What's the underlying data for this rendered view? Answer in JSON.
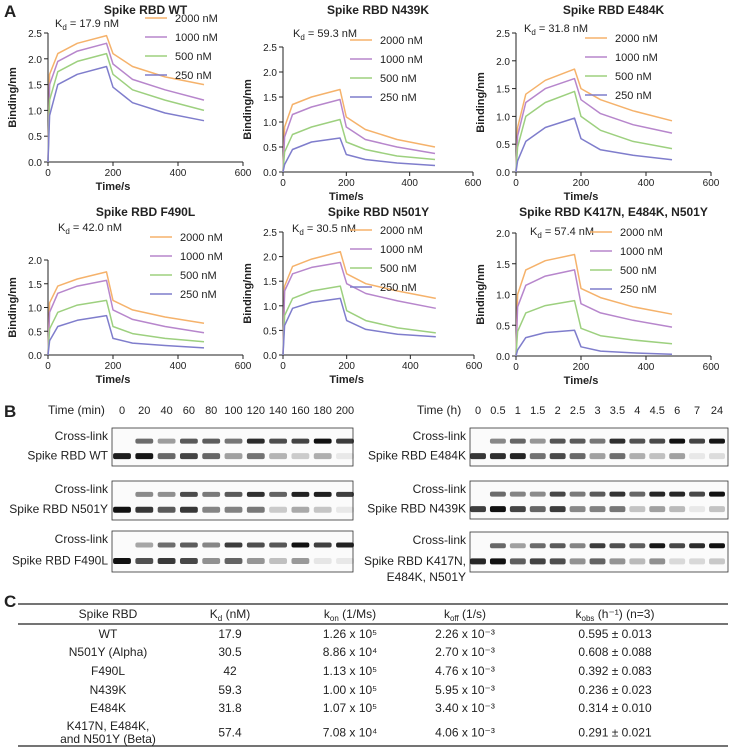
{
  "panels": [
    "A",
    "B",
    "C"
  ],
  "chart_data": [
    {
      "type": "line",
      "title": "Spike RBD WT",
      "kd": {
        "symbol": "K",
        "sub": "d",
        "text": " = 17.9 nM"
      },
      "x_label": "Time/s",
      "y_label": "Binding/nm",
      "x": [
        0,
        5,
        30,
        90,
        180,
        200,
        260,
        360,
        480
      ],
      "xlim": [
        0,
        600
      ],
      "xticks": [
        0,
        200,
        400,
        600
      ],
      "ylim": [
        0,
        2.5
      ],
      "yticks": [
        {
          "value": 0,
          "label": "0.0"
        },
        0.5,
        {
          "value": 1,
          "label": "1.0"
        },
        1.5,
        {
          "value": 2,
          "label": "2.0"
        },
        2.5
      ],
      "series": [
        {
          "name": "2000 nM",
          "color": "#f5b26b",
          "values": [
            0,
            1.7,
            2.1,
            2.3,
            2.45,
            2.1,
            1.85,
            1.65,
            1.5
          ]
        },
        {
          "name": "1000 nM",
          "color": "#b786cc",
          "values": [
            0,
            1.5,
            1.95,
            2.15,
            2.3,
            1.9,
            1.6,
            1.4,
            1.2
          ]
        },
        {
          "name": "500 nM",
          "color": "#9dd07f",
          "values": [
            0,
            1.2,
            1.75,
            1.95,
            2.1,
            1.7,
            1.4,
            1.2,
            1.0
          ]
        },
        {
          "name": "250 nM",
          "color": "#7f7dcc",
          "values": [
            0,
            0.9,
            1.5,
            1.7,
            1.85,
            1.45,
            1.15,
            0.95,
            0.8
          ]
        }
      ]
    },
    {
      "type": "line",
      "title": "Spike RBD N439K",
      "kd": {
        "symbol": "K",
        "sub": "d",
        "text": " = 59.3 nM"
      },
      "x_label": "Time/s",
      "y_label": "Binding/nm",
      "x": [
        0,
        5,
        30,
        90,
        180,
        200,
        260,
        360,
        480
      ],
      "xlim": [
        0,
        600
      ],
      "xticks": [
        0,
        200,
        400,
        600
      ],
      "ylim": [
        0,
        2.5
      ],
      "yticks": [
        {
          "value": 0,
          "label": "0.0"
        },
        0.5,
        {
          "value": 1,
          "label": "1.0"
        },
        1.5,
        {
          "value": 2,
          "label": "2.0"
        },
        2.5
      ],
      "series": [
        {
          "name": "2000 nM",
          "color": "#f5b26b",
          "values": [
            0,
            0.9,
            1.35,
            1.5,
            1.65,
            1.1,
            0.85,
            0.65,
            0.5
          ]
        },
        {
          "name": "1000 nM",
          "color": "#b786cc",
          "values": [
            0,
            0.7,
            1.15,
            1.3,
            1.45,
            0.9,
            0.65,
            0.5,
            0.37
          ]
        },
        {
          "name": "500 nM",
          "color": "#9dd07f",
          "values": [
            0,
            0.4,
            0.75,
            0.9,
            1.05,
            0.6,
            0.45,
            0.32,
            0.25
          ]
        },
        {
          "name": "250 nM",
          "color": "#7f7dcc",
          "values": [
            0,
            0.15,
            0.45,
            0.6,
            0.68,
            0.35,
            0.25,
            0.18,
            0.13
          ]
        }
      ]
    },
    {
      "type": "line",
      "title": "Spike RBD E484K",
      "kd": {
        "symbol": "K",
        "sub": "d",
        "text": " = 31.8 nM"
      },
      "x_label": "Time/s",
      "y_label": "Binding/nm",
      "x": [
        0,
        5,
        30,
        90,
        180,
        200,
        260,
        360,
        480
      ],
      "xlim": [
        0,
        600
      ],
      "xticks": [
        0,
        200,
        400,
        600
      ],
      "ylim": [
        0,
        2.5
      ],
      "yticks": [
        {
          "value": 0,
          "label": "0.0"
        },
        0.5,
        {
          "value": 1,
          "label": "1.0"
        },
        1.5,
        {
          "value": 2,
          "label": "2.0"
        },
        2.5
      ],
      "series": [
        {
          "name": "2000 nM",
          "color": "#f5b26b",
          "values": [
            0,
            0.8,
            1.4,
            1.65,
            1.85,
            1.5,
            1.3,
            1.1,
            0.92
          ]
        },
        {
          "name": "1000 nM",
          "color": "#b786cc",
          "values": [
            0,
            0.65,
            1.25,
            1.5,
            1.68,
            1.3,
            1.05,
            0.85,
            0.7
          ]
        },
        {
          "name": "500 nM",
          "color": "#9dd07f",
          "values": [
            0,
            0.45,
            1.0,
            1.25,
            1.45,
            1.0,
            0.75,
            0.55,
            0.42
          ]
        },
        {
          "name": "250 nM",
          "color": "#7f7dcc",
          "values": [
            0,
            0.2,
            0.55,
            0.8,
            0.97,
            0.6,
            0.4,
            0.3,
            0.22
          ]
        }
      ]
    },
    {
      "type": "line",
      "title": "Spike RBD F490L",
      "kd": {
        "symbol": "K",
        "sub": "d",
        "text": " = 42.0 nM"
      },
      "x_label": "Time/s",
      "y_label": "Binding/nm",
      "x": [
        0,
        5,
        30,
        90,
        180,
        200,
        260,
        360,
        480
      ],
      "xlim": [
        0,
        600
      ],
      "xticks": [
        0,
        200,
        400,
        600
      ],
      "ylim": [
        0,
        2
      ],
      "yticks": [
        {
          "value": 0,
          "label": "0.0"
        },
        0.5,
        {
          "value": 1,
          "label": "1.0"
        },
        1.5,
        {
          "value": 2,
          "label": "2.0"
        }
      ],
      "series": [
        {
          "name": "2000 nM",
          "color": "#f5b26b",
          "values": [
            0,
            1.1,
            1.45,
            1.6,
            1.75,
            1.15,
            0.95,
            0.8,
            0.67
          ]
        },
        {
          "name": "1000 nM",
          "color": "#b786cc",
          "values": [
            0,
            0.9,
            1.3,
            1.45,
            1.57,
            0.95,
            0.75,
            0.6,
            0.47
          ]
        },
        {
          "name": "500 nM",
          "color": "#9dd07f",
          "values": [
            0,
            0.55,
            0.9,
            1.05,
            1.15,
            0.6,
            0.45,
            0.35,
            0.28
          ]
        },
        {
          "name": "250 nM",
          "color": "#7f7dcc",
          "values": [
            0,
            0.3,
            0.6,
            0.73,
            0.83,
            0.35,
            0.25,
            0.2,
            0.15
          ]
        }
      ]
    },
    {
      "type": "line",
      "title": "Spike RBD N501Y",
      "kd": {
        "symbol": "K",
        "sub": "d",
        "text": " = 30.5 nM"
      },
      "x_label": "Time/s",
      "y_label": "Binding/nm",
      "x": [
        0,
        5,
        30,
        90,
        180,
        200,
        260,
        360,
        480
      ],
      "xlim": [
        0,
        600
      ],
      "xticks": [
        0,
        200,
        400,
        600
      ],
      "ylim": [
        0,
        2.5
      ],
      "yticks": [
        {
          "value": 0,
          "label": "0.0"
        },
        0.5,
        {
          "value": 1,
          "label": "1.0"
        },
        1.5,
        {
          "value": 2,
          "label": "2.0"
        },
        2.5
      ],
      "series": [
        {
          "name": "2000 nM",
          "color": "#f5b26b",
          "values": [
            0,
            1.4,
            1.8,
            1.95,
            2.1,
            1.65,
            1.45,
            1.3,
            1.15
          ]
        },
        {
          "name": "1000 nM",
          "color": "#b786cc",
          "values": [
            0,
            1.3,
            1.65,
            1.78,
            1.88,
            1.45,
            1.25,
            1.1,
            0.95
          ]
        },
        {
          "name": "500 nM",
          "color": "#9dd07f",
          "values": [
            0,
            0.8,
            1.15,
            1.3,
            1.4,
            0.9,
            0.7,
            0.55,
            0.45
          ]
        },
        {
          "name": "250 nM",
          "color": "#7f7dcc",
          "values": [
            0,
            0.6,
            0.95,
            1.07,
            1.15,
            0.7,
            0.52,
            0.42,
            0.37
          ]
        }
      ]
    },
    {
      "type": "line",
      "title": "Spike RBD K417N, E484K, N501Y",
      "kd": {
        "symbol": "K",
        "sub": "d",
        "text": " = 57.4 nM"
      },
      "x_label": "Time/s",
      "y_label": "Binding/nm",
      "x": [
        0,
        5,
        30,
        90,
        180,
        200,
        260,
        360,
        480
      ],
      "xlim": [
        0,
        600
      ],
      "xticks": [
        0,
        200,
        400,
        600
      ],
      "ylim": [
        0,
        2
      ],
      "yticks": [
        {
          "value": 0,
          "label": "0.0"
        },
        0.5,
        {
          "value": 1,
          "label": "1.0"
        },
        1.5,
        {
          "value": 2,
          "label": "2.0"
        }
      ],
      "series": [
        {
          "name": "2000 nM",
          "color": "#f5b26b",
          "values": [
            0,
            1.0,
            1.4,
            1.55,
            1.65,
            1.1,
            0.95,
            0.8,
            0.68
          ]
        },
        {
          "name": "1000 nM",
          "color": "#b786cc",
          "values": [
            0,
            0.8,
            1.15,
            1.3,
            1.4,
            0.85,
            0.7,
            0.58,
            0.47
          ]
        },
        {
          "name": "500 nM",
          "color": "#9dd07f",
          "values": [
            0,
            0.4,
            0.7,
            0.82,
            0.9,
            0.45,
            0.33,
            0.26,
            0.2
          ]
        },
        {
          "name": "250 nM",
          "color": "#7f7dcc",
          "values": [
            0,
            0.1,
            0.3,
            0.38,
            0.42,
            0.15,
            0.08,
            0.05,
            0.03
          ]
        }
      ]
    }
  ],
  "gels": {
    "left": {
      "header": "Time (min)",
      "times": [
        0,
        20,
        40,
        60,
        80,
        100,
        120,
        140,
        160,
        180,
        200
      ],
      "blots": [
        [
          "Cross-link",
          "Spike RBD WT"
        ],
        [
          "Cross-link",
          "Spike RBD N501Y"
        ],
        [
          "Cross-link",
          "Spike RBD F490L"
        ]
      ]
    },
    "right": {
      "header": "Time (h)",
      "times": [
        0,
        0.5,
        1,
        1.5,
        2,
        2.5,
        3,
        3.5,
        4,
        4.5,
        6,
        7,
        24
      ],
      "blots": [
        [
          "Cross-link",
          "Spike RBD E484K"
        ],
        [
          "Cross-link",
          "Spike RBD N439K"
        ],
        [
          "Cross-link",
          "Spike RBD K417N,",
          "E484K, N501Y"
        ]
      ]
    }
  },
  "table": {
    "header": [
      {
        "text": "Spike RBD"
      },
      {
        "main": "K",
        "sub": "d",
        "rest": " (nM)"
      },
      {
        "main": "k",
        "sub": "on",
        "rest": " (1/Ms)"
      },
      {
        "main": "k",
        "sub": "off",
        "rest": " (1/s)"
      },
      {
        "main": "k",
        "sub": "obs",
        "rest": " (h⁻¹) (n=3)"
      }
    ],
    "rows": [
      [
        [
          "WT"
        ],
        "17.9",
        "1.26 x 10⁵",
        "2.26 x 10⁻³",
        "0.595 ± 0.013"
      ],
      [
        [
          "N501Y (Alpha)"
        ],
        "30.5",
        "8.86 x 10⁴",
        "2.70 x 10⁻³",
        "0.608 ± 0.088"
      ],
      [
        [
          "F490L"
        ],
        "42",
        "1.13 x 10⁵",
        "4.76 x 10⁻³",
        "0.392 ± 0.083"
      ],
      [
        [
          "N439K"
        ],
        "59.3",
        "1.00 x 10⁵",
        "5.95 x 10⁻³",
        "0.236 ± 0.023"
      ],
      [
        [
          "E484K"
        ],
        "31.8",
        "1.07 x 10⁵",
        "3.40 x 10⁻³",
        "0.314 ± 0.010"
      ],
      [
        [
          "K417N, E484K,",
          "and N501Y (Beta)"
        ],
        "57.4",
        "7.08 x 10⁴",
        "4.06 x 10⁻³",
        "0.291 ± 0.021"
      ]
    ]
  }
}
